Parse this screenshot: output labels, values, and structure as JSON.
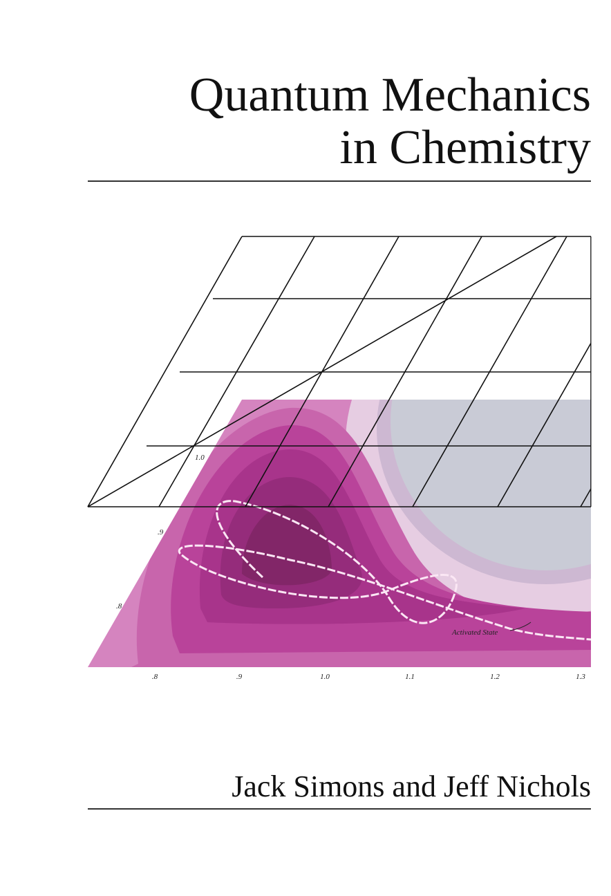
{
  "title": {
    "line1": "Quantum Mechanics",
    "line2": "in Chemistry"
  },
  "figure": {
    "left_labels": [
      "1.0",
      ".9",
      ".8"
    ],
    "bottom_labels": [
      ".8",
      ".9",
      "1.0",
      "1.1",
      "1.2",
      "1.3"
    ],
    "annotation": "Activated State"
  },
  "authors": "Jack Simons and Jeff Nichols"
}
